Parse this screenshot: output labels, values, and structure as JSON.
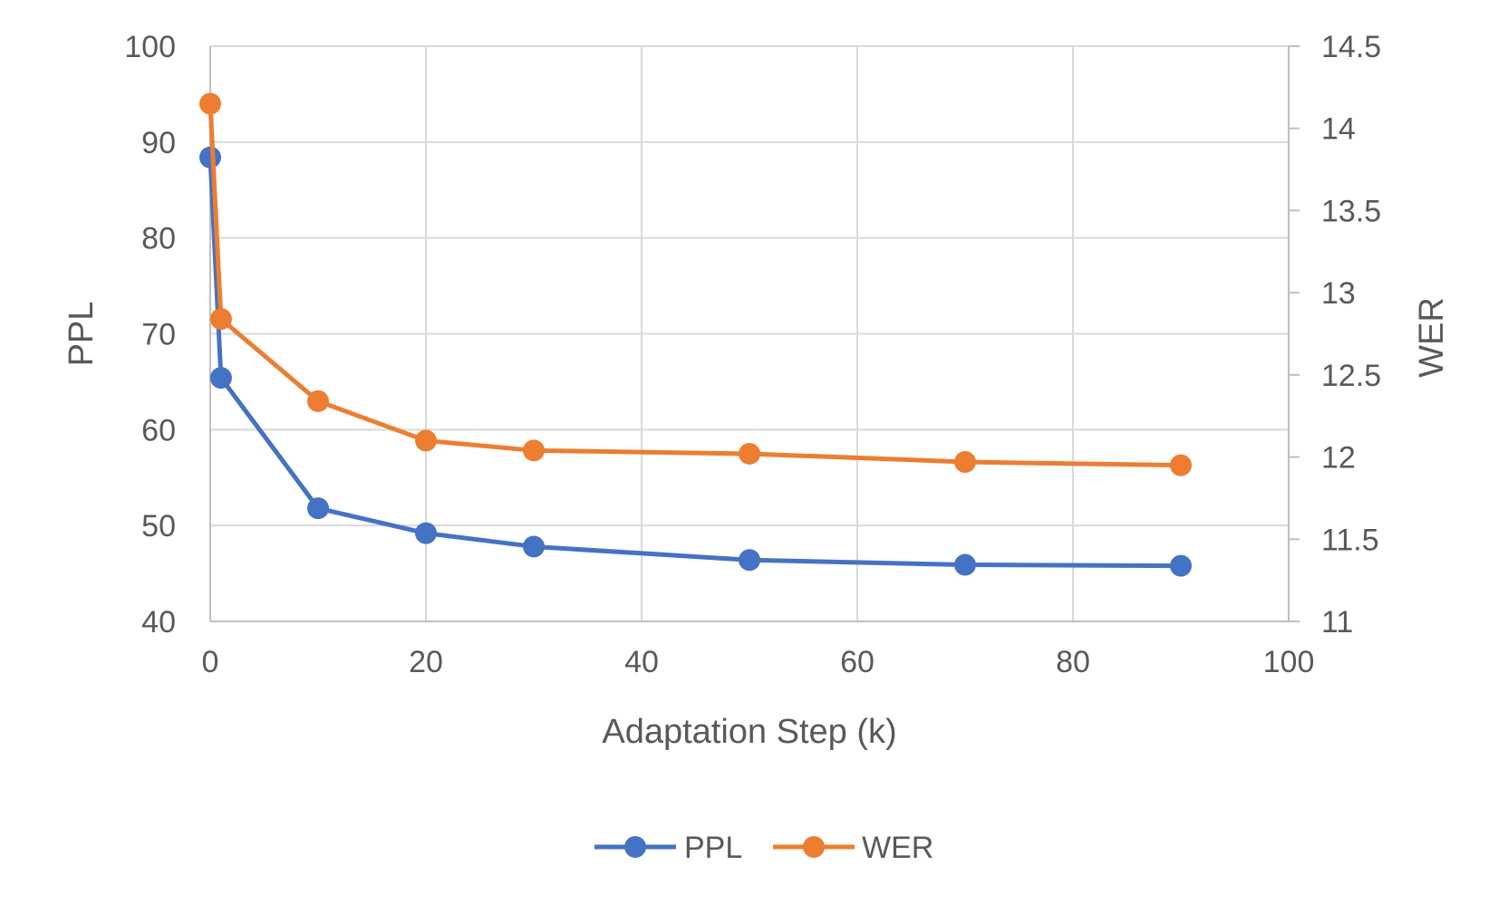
{
  "chart_data": {
    "type": "line",
    "title": "",
    "xlabel": "Adaptation Step (k)",
    "ylabel": "PPL",
    "y2label": "WER",
    "xlim": [
      0,
      100
    ],
    "ylim": [
      40,
      100
    ],
    "y2lim": [
      11,
      14.5
    ],
    "x_ticks": [
      0,
      20,
      40,
      60,
      80,
      100
    ],
    "y_ticks": [
      40,
      50,
      60,
      70,
      80,
      90,
      100
    ],
    "y2_ticks": [
      11,
      11.5,
      12,
      12.5,
      13,
      13.5,
      14,
      14.5
    ],
    "grid": true,
    "legend_position": "bottom",
    "series": [
      {
        "name": "PPL",
        "axis": "left",
        "color": "#4472C4",
        "x": [
          0,
          1,
          10,
          20,
          30,
          50,
          70,
          90
        ],
        "values": [
          88.4,
          65.4,
          51.8,
          49.2,
          47.8,
          46.4,
          45.9,
          45.8
        ]
      },
      {
        "name": "WER",
        "axis": "right",
        "color": "#ED7D31",
        "x": [
          0,
          1,
          10,
          20,
          30,
          50,
          70,
          90
        ],
        "values": [
          14.15,
          12.84,
          12.34,
          12.1,
          12.04,
          12.02,
          11.97,
          11.95
        ]
      }
    ]
  }
}
